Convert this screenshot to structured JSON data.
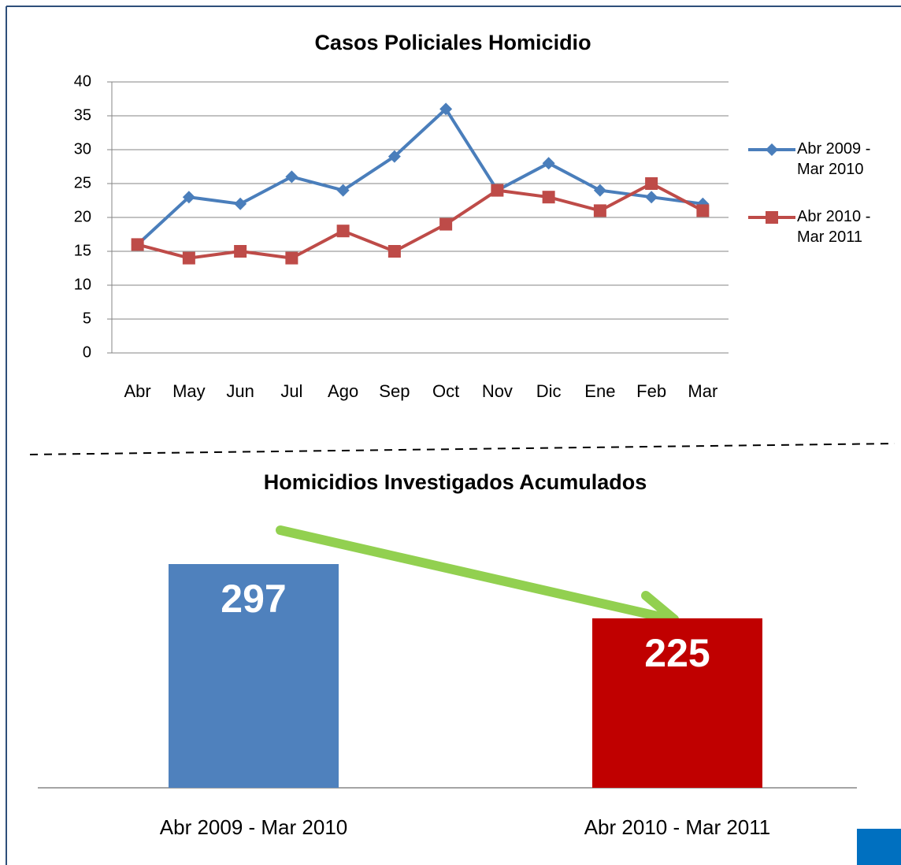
{
  "chart_data": [
    {
      "type": "line",
      "title": "Casos Policiales Homicidio",
      "categories": [
        "Abr",
        "May",
        "Jun",
        "Jul",
        "Ago",
        "Sep",
        "Oct",
        "Nov",
        "Dic",
        "Ene",
        "Feb",
        "Mar"
      ],
      "series": [
        {
          "name": "Abr 2009 - Mar 2010",
          "color": "#4a7ebb",
          "marker": "diamond",
          "values": [
            16,
            23,
            22,
            26,
            24,
            29,
            36,
            24,
            28,
            24,
            23,
            22
          ]
        },
        {
          "name": "Abr 2010 - Mar 2011",
          "color": "#be4b48",
          "marker": "square",
          "values": [
            16,
            14,
            15,
            14,
            18,
            15,
            19,
            24,
            23,
            21,
            25,
            21
          ]
        }
      ],
      "ylim": [
        0,
        40
      ],
      "yticks": [
        0,
        5,
        10,
        15,
        20,
        25,
        30,
        35,
        40
      ],
      "grid": true,
      "legend": "right"
    },
    {
      "type": "bar",
      "title": "Homicidios Investigados Acumulados",
      "categories": [
        "Abr 2009 - Mar 2010",
        "Abr 2010 - Mar 2011"
      ],
      "values": [
        297,
        225
      ],
      "colors": [
        "#4f81bd",
        "#c00000"
      ]
    }
  ]
}
